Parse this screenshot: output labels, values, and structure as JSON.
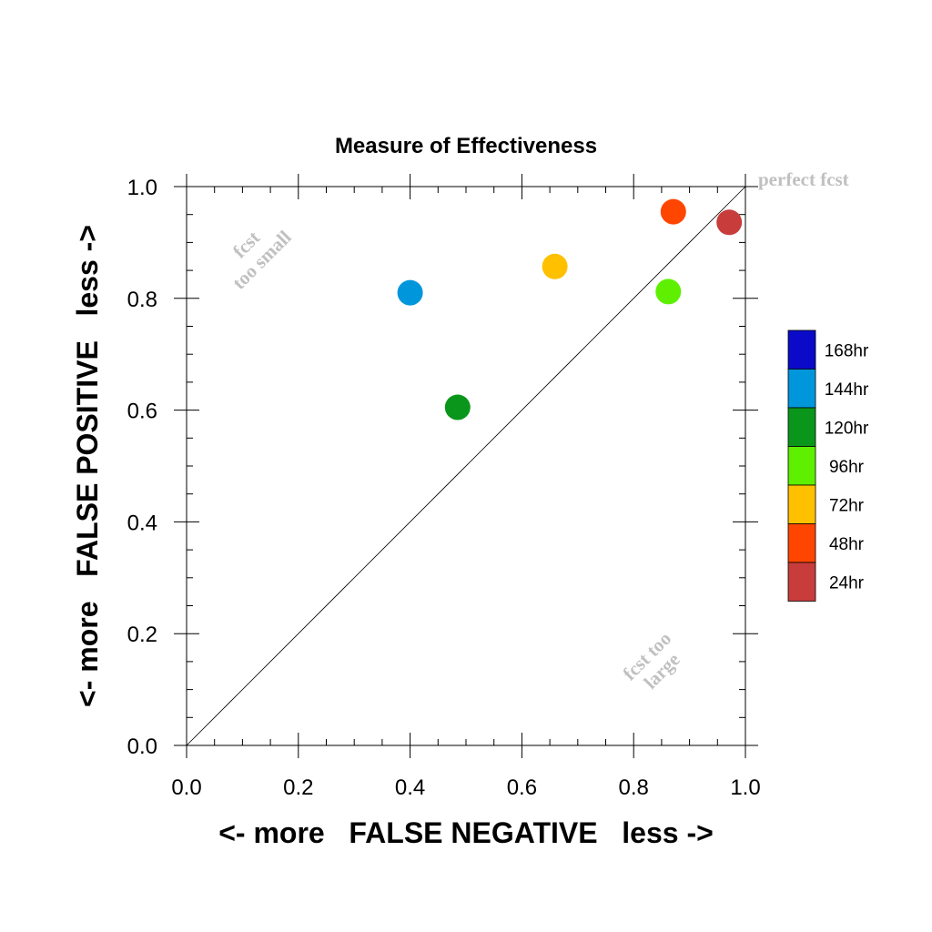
{
  "chart_data": {
    "type": "scatter",
    "title": "Measure of Effectiveness",
    "xlabel": "<- more   FALSE NEGATIVE   less ->",
    "ylabel": "<- more   FALSE POSITIVE   less ->",
    "xlim": [
      0.0,
      1.0
    ],
    "ylim": [
      0.0,
      1.0
    ],
    "xticks": [
      "0.0",
      "0.2",
      "0.4",
      "0.6",
      "0.8",
      "1.0"
    ],
    "yticks": [
      "0.0",
      "0.2",
      "0.4",
      "0.6",
      "0.8",
      "1.0"
    ],
    "grid": false,
    "reference_line": {
      "from": [
        0.0,
        0.0
      ],
      "to": [
        1.0,
        1.0
      ]
    },
    "annotations": [
      {
        "text": "perfect fcst"
      },
      {
        "text": "fcst",
        "text2": "too small"
      },
      {
        "text": "fcst too",
        "text2": "large"
      }
    ],
    "legend": {
      "placement": "right",
      "entries": [
        {
          "label": "168hr",
          "color": "#0a0ac8"
        },
        {
          "label": "144hr",
          "color": "#0096dc"
        },
        {
          "label": "120hr",
          "color": "#0a961a"
        },
        {
          "label": "96hr",
          "color": "#5ef000"
        },
        {
          "label": "72hr",
          "color": "#ffc000"
        },
        {
          "label": "48hr",
          "color": "#ff4600"
        },
        {
          "label": "24hr",
          "color": "#c83c3c"
        }
      ]
    },
    "series": [
      {
        "name": "144hr",
        "x": [
          0.4
        ],
        "y": [
          0.81
        ],
        "color": "#0096dc"
      },
      {
        "name": "120hr",
        "x": [
          0.485
        ],
        "y": [
          0.605
        ],
        "color": "#0a961a"
      },
      {
        "name": "96hr",
        "x": [
          0.862
        ],
        "y": [
          0.812
        ],
        "color": "#5ef000"
      },
      {
        "name": "72hr",
        "x": [
          0.659
        ],
        "y": [
          0.857
        ],
        "color": "#ffc000"
      },
      {
        "name": "48hr",
        "x": [
          0.871
        ],
        "y": [
          0.955
        ],
        "color": "#ff4600"
      },
      {
        "name": "24hr",
        "x": [
          0.971
        ],
        "y": [
          0.936
        ],
        "color": "#c83c3c"
      }
    ]
  }
}
